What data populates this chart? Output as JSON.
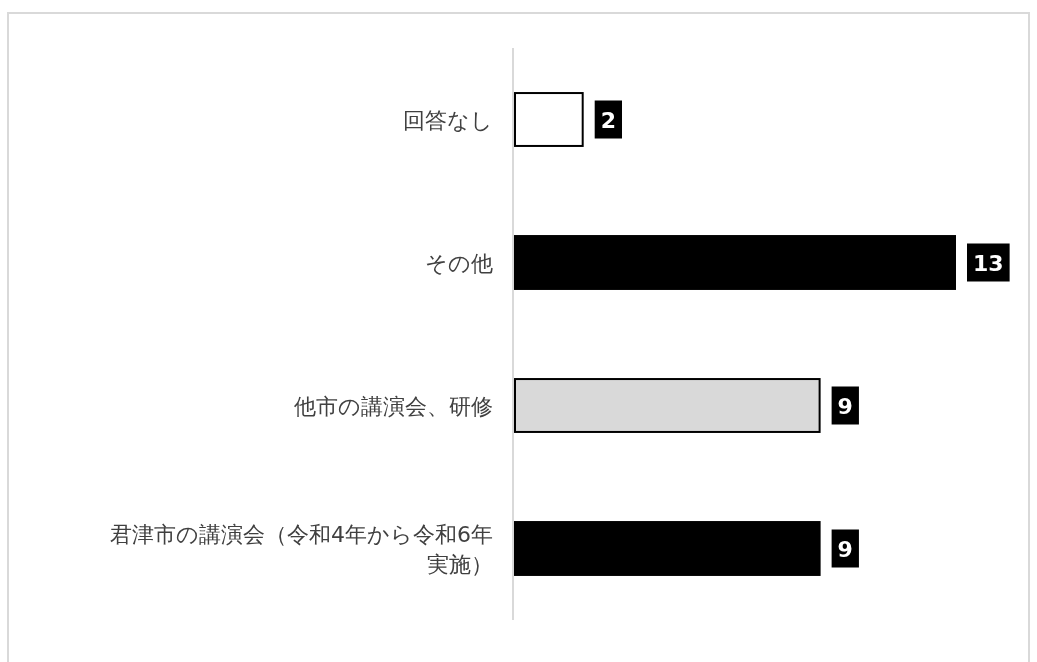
{
  "chart_data": {
    "type": "bar",
    "orientation": "horizontal",
    "categories": [
      "回答なし",
      "その他",
      "他市の講演会、研修",
      "君津市の講演会（令和4年から令和6年実施）"
    ],
    "values": [
      2,
      13,
      9,
      9
    ],
    "colors": [
      "#ffffff",
      "#000000",
      "#d9d9d9",
      "#000000"
    ],
    "data_labels": true
  }
}
